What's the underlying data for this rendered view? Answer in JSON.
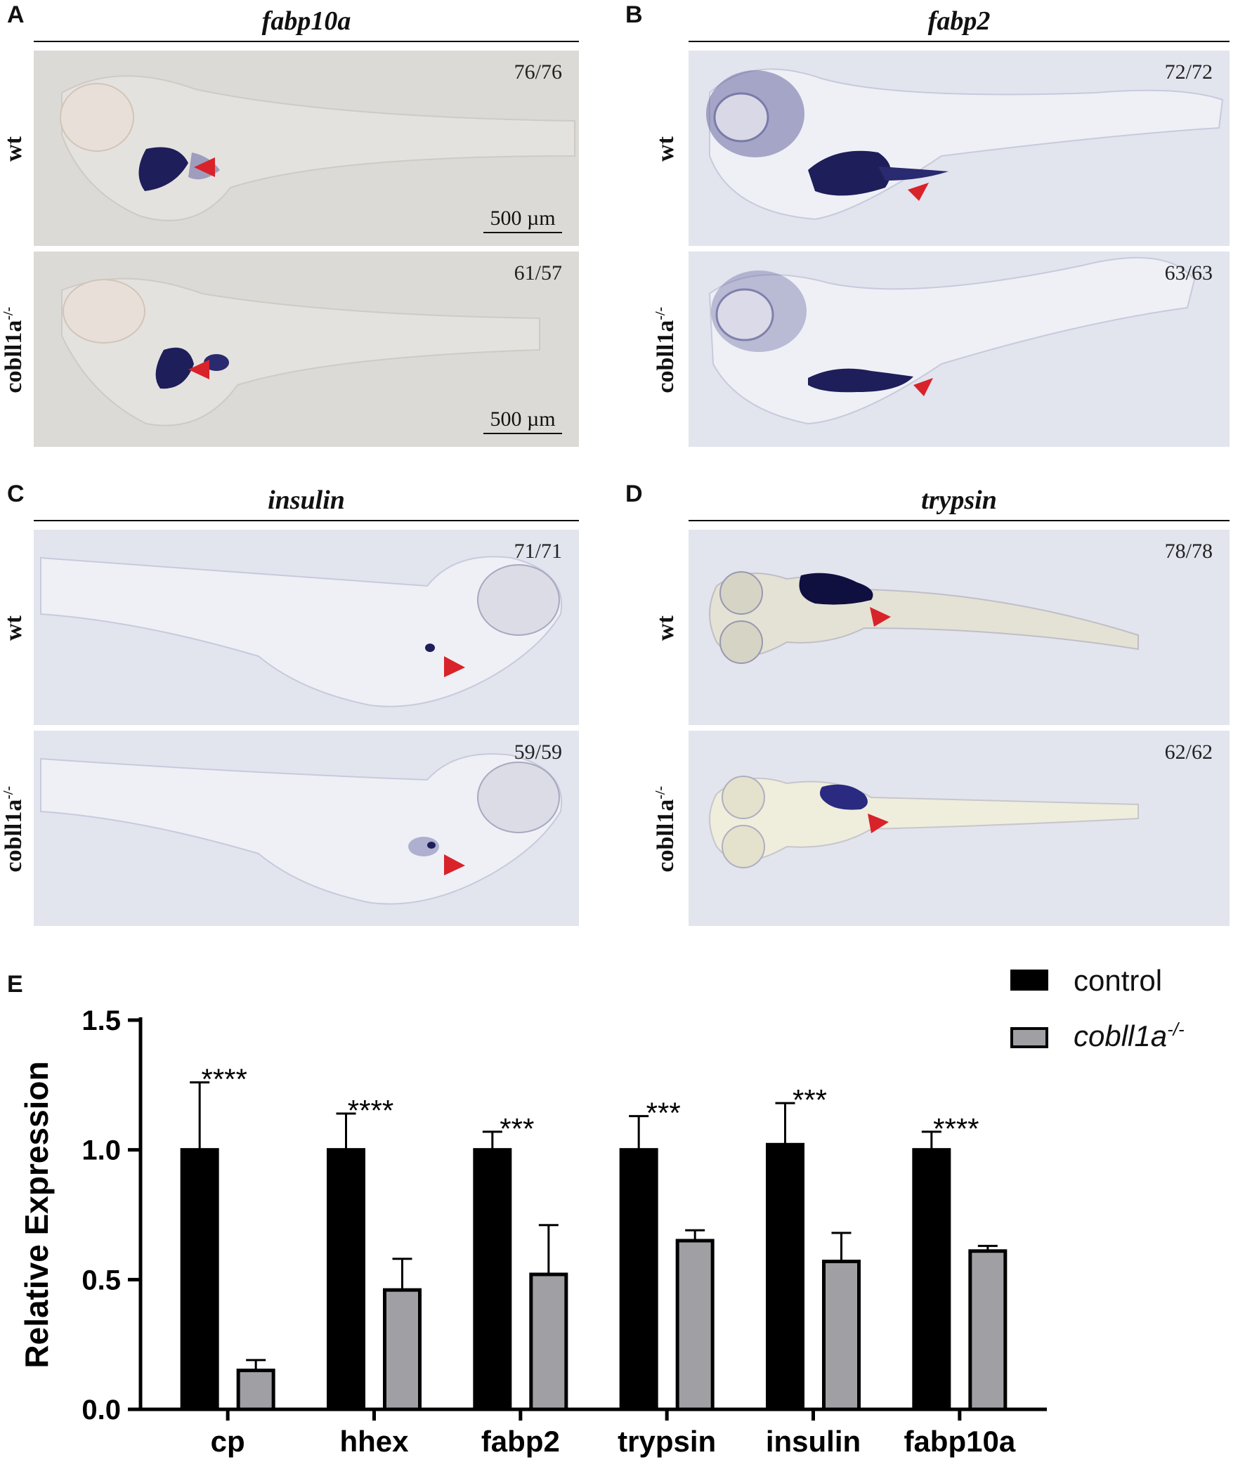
{
  "panels": {
    "A": {
      "letter": "A",
      "title": "fabp10a",
      "wt_count": "76/76",
      "mut_count": "61/57",
      "scale_top": "500 µm",
      "scale_bottom": "500 µm"
    },
    "B": {
      "letter": "B",
      "title": "fabp2",
      "wt_count": "72/72",
      "mut_count": "63/63"
    },
    "C": {
      "letter": "C",
      "title": "insulin",
      "wt_count": "71/71",
      "mut_count": "59/59"
    },
    "D": {
      "letter": "D",
      "title": "trypsin",
      "wt_count": "78/78",
      "mut_count": "62/62"
    }
  },
  "row_labels": {
    "wt": "wt",
    "mut_base": "cobll1a",
    "mut_sup": "-/-"
  },
  "colors": {
    "stain": "#1e1e5a",
    "arrow": "#d8232a",
    "bg_left": "#dcdad6",
    "bg_right": "#e2e4ee",
    "control_bar": "#000000",
    "mutant_bar": "#a0a0a4"
  },
  "chart_panel_letter": "E",
  "chart_data": {
    "type": "bar",
    "categories": [
      "cp",
      "hhex",
      "fabp2",
      "trypsin",
      "insulin",
      "fabp10a"
    ],
    "ylabel": "Relative Expression",
    "ylim": [
      0,
      1.5
    ],
    "yticks": [
      "0.0",
      "0.5",
      "1.0",
      "1.5"
    ],
    "series": [
      {
        "name": "control",
        "values": [
          1.0,
          1.0,
          1.0,
          1.0,
          1.02,
          1.0
        ],
        "errors": [
          0.26,
          0.14,
          0.07,
          0.13,
          0.16,
          0.07
        ]
      },
      {
        "name": "cobll1a",
        "name_sup": "-/-",
        "values": [
          0.15,
          0.46,
          0.52,
          0.65,
          0.57,
          0.61
        ],
        "errors": [
          0.04,
          0.12,
          0.19,
          0.04,
          0.11,
          0.02
        ]
      }
    ],
    "significance": [
      "****",
      "****",
      "***",
      "***",
      "***",
      "****"
    ],
    "legend_position": "top-right"
  }
}
